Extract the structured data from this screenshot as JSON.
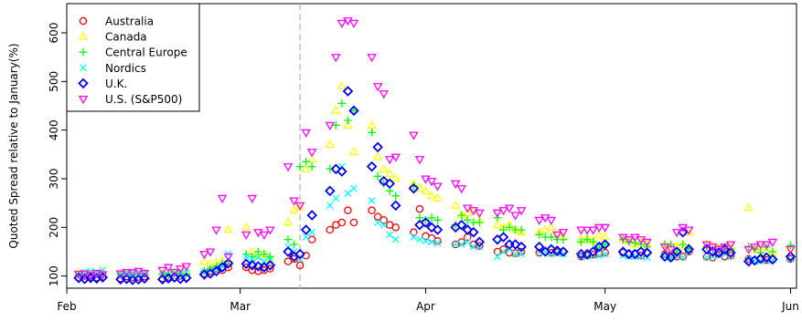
{
  "chart_data": {
    "type": "scatter",
    "title": "",
    "xlabel": "",
    "ylabel": "Quoted Spread relative to January(%)",
    "xlim": [
      "2020-02-01",
      "2020-06-02"
    ],
    "ylim": [
      75,
      660
    ],
    "x_ticks": [
      {
        "label": "Feb",
        "date": "2020-02-01"
      },
      {
        "label": "Mar",
        "date": "2020-03-01"
      },
      {
        "label": "Apr",
        "date": "2020-04-01"
      },
      {
        "label": "May",
        "date": "2020-05-01"
      },
      {
        "label": "Jun",
        "date": "2020-06-01"
      }
    ],
    "y_ticks": [
      100,
      200,
      300,
      400,
      500,
      600
    ],
    "grid": false,
    "legend_position": "top-left",
    "vline": {
      "date": "2020-03-11",
      "style": "dashed",
      "color": "#bbbbbb"
    },
    "dates": [
      "2020-02-03",
      "2020-02-04",
      "2020-02-05",
      "2020-02-06",
      "2020-02-07",
      "2020-02-10",
      "2020-02-11",
      "2020-02-12",
      "2020-02-13",
      "2020-02-14",
      "2020-02-17",
      "2020-02-18",
      "2020-02-19",
      "2020-02-20",
      "2020-02-21",
      "2020-02-24",
      "2020-02-25",
      "2020-02-26",
      "2020-02-27",
      "2020-02-28",
      "2020-03-02",
      "2020-03-03",
      "2020-03-04",
      "2020-03-05",
      "2020-03-06",
      "2020-03-09",
      "2020-03-10",
      "2020-03-11",
      "2020-03-12",
      "2020-03-13",
      "2020-03-16",
      "2020-03-17",
      "2020-03-18",
      "2020-03-19",
      "2020-03-20",
      "2020-03-23",
      "2020-03-24",
      "2020-03-25",
      "2020-03-26",
      "2020-03-27",
      "2020-03-30",
      "2020-03-31",
      "2020-04-01",
      "2020-04-02",
      "2020-04-03",
      "2020-04-06",
      "2020-04-07",
      "2020-04-08",
      "2020-04-09",
      "2020-04-10",
      "2020-04-13",
      "2020-04-14",
      "2020-04-15",
      "2020-04-16",
      "2020-04-17",
      "2020-04-20",
      "2020-04-21",
      "2020-04-22",
      "2020-04-23",
      "2020-04-24",
      "2020-04-27",
      "2020-04-28",
      "2020-04-29",
      "2020-04-30",
      "2020-05-01",
      "2020-05-04",
      "2020-05-05",
      "2020-05-06",
      "2020-05-07",
      "2020-05-08",
      "2020-05-11",
      "2020-05-12",
      "2020-05-13",
      "2020-05-14",
      "2020-05-15",
      "2020-05-18",
      "2020-05-19",
      "2020-05-20",
      "2020-05-21",
      "2020-05-22",
      "2020-05-25",
      "2020-05-26",
      "2020-05-27",
      "2020-05-28",
      "2020-05-29",
      "2020-06-01"
    ],
    "series": [
      {
        "name": "Australia",
        "color": "#ff0000",
        "marker": "circle",
        "values": [
          96,
          100,
          98,
          97,
          98,
          95,
          99,
          97,
          98,
          99,
          95,
          98,
          96,
          100,
          97,
          105,
          110,
          115,
          112,
          118,
          118,
          112,
          110,
          112,
          115,
          130,
          135,
          122,
          142,
          175,
          195,
          205,
          210,
          235,
          210,
          235,
          222,
          215,
          205,
          200,
          190,
          238,
          182,
          178,
          172,
          165,
          170,
          180,
          165,
          162,
          150,
          155,
          148,
          147,
          150,
          148,
          150,
          148,
          149,
          150,
          140,
          142,
          144,
          146,
          148,
          148,
          144,
          146,
          142,
          148,
          145,
          142,
          140,
          140,
          150,
          140,
          138,
          145,
          140,
          142,
          135,
          132,
          134,
          133,
          135,
          135
        ]
      },
      {
        "name": "Canada",
        "color": "#ffff00",
        "marker": "triangle-up",
        "values": [
          108,
          105,
          105,
          104,
          110,
          105,
          105,
          104,
          103,
          106,
          105,
          106,
          108,
          109,
          110,
          130,
          125,
          128,
          130,
          195,
          200,
          150,
          140,
          145,
          135,
          210,
          235,
          242,
          320,
          340,
          370,
          440,
          490,
          410,
          355,
          410,
          345,
          320,
          310,
          300,
          290,
          280,
          275,
          265,
          260,
          245,
          225,
          230,
          235,
          215,
          205,
          200,
          205,
          195,
          190,
          190,
          195,
          200,
          185,
          180,
          175,
          178,
          172,
          185,
          180,
          175,
          172,
          165,
          170,
          168,
          165,
          160,
          160,
          165,
          190,
          165,
          162,
          158,
          160,
          162,
          240,
          155,
          160,
          150,
          148,
          158
        ]
      },
      {
        "name": "Central Europe",
        "color": "#00ff00",
        "marker": "plus",
        "values": [
          102,
          104,
          103,
          105,
          101,
          103,
          104,
          102,
          104,
          103,
          104,
          102,
          103,
          105,
          104,
          110,
          115,
          120,
          125,
          130,
          145,
          140,
          150,
          145,
          140,
          175,
          165,
          325,
          335,
          325,
          320,
          410,
          455,
          420,
          440,
          395,
          305,
          290,
          275,
          265,
          285,
          220,
          215,
          220,
          215,
          205,
          225,
          215,
          210,
          210,
          220,
          195,
          200,
          195,
          195,
          185,
          180,
          180,
          175,
          175,
          170,
          175,
          170,
          160,
          165,
          175,
          170,
          168,
          165,
          160,
          165,
          165,
          150,
          165,
          158,
          160,
          155,
          155,
          158,
          155,
          160,
          155,
          148,
          160,
          150,
          163
        ]
      },
      {
        "name": "Nordics",
        "color": "#00ffff",
        "marker": "cross",
        "values": [
          105,
          108,
          110,
          107,
          112,
          104,
          106,
          105,
          107,
          106,
          102,
          104,
          106,
          105,
          107,
          110,
          112,
          115,
          120,
          145,
          140,
          135,
          138,
          130,
          133,
          160,
          150,
          135,
          180,
          190,
          245,
          260,
          325,
          270,
          280,
          255,
          210,
          205,
          185,
          175,
          180,
          175,
          172,
          170,
          168,
          165,
          165,
          170,
          160,
          160,
          140,
          150,
          155,
          145,
          145,
          150,
          150,
          145,
          148,
          145,
          140,
          140,
          142,
          142,
          145,
          142,
          140,
          140,
          140,
          138,
          140,
          138,
          140,
          138,
          150,
          138,
          140,
          142,
          145,
          140,
          135,
          132,
          130,
          132,
          133,
          134
        ]
      },
      {
        "name": "U.K.",
        "color": "#0000ff",
        "marker": "diamond",
        "values": [
          96,
          94,
          96,
          95,
          97,
          93,
          94,
          92,
          93,
          95,
          93,
          95,
          97,
          94,
          96,
          103,
          105,
          110,
          118,
          126,
          125,
          122,
          120,
          118,
          122,
          150,
          140,
          145,
          195,
          225,
          275,
          320,
          315,
          480,
          440,
          325,
          365,
          295,
          290,
          245,
          280,
          205,
          210,
          200,
          195,
          200,
          205,
          195,
          190,
          170,
          175,
          180,
          165,
          165,
          160,
          160,
          150,
          155,
          152,
          150,
          145,
          145,
          150,
          160,
          165,
          150,
          145,
          145,
          150,
          148,
          140,
          138,
          150,
          190,
          155,
          155,
          150,
          148,
          155,
          148,
          130,
          132,
          136,
          138,
          134,
          140
        ]
      },
      {
        "name": "U.S. (S&P500)",
        "color": "#ff00ff",
        "marker": "triangle-down",
        "values": [
          104,
          105,
          102,
          106,
          103,
          105,
          108,
          107,
          110,
          106,
          112,
          118,
          108,
          115,
          120,
          145,
          150,
          195,
          260,
          140,
          185,
          260,
          190,
          185,
          195,
          325,
          255,
          245,
          395,
          355,
          410,
          550,
          620,
          625,
          620,
          550,
          490,
          475,
          340,
          345,
          390,
          340,
          300,
          295,
          285,
          290,
          280,
          240,
          235,
          230,
          230,
          235,
          240,
          225,
          235,
          215,
          220,
          215,
          185,
          190,
          195,
          195,
          195,
          200,
          200,
          180,
          175,
          180,
          175,
          170,
          160,
          155,
          190,
          200,
          195,
          165,
          160,
          155,
          160,
          165,
          155,
          160,
          165,
          165,
          170,
          155
        ]
      }
    ]
  }
}
